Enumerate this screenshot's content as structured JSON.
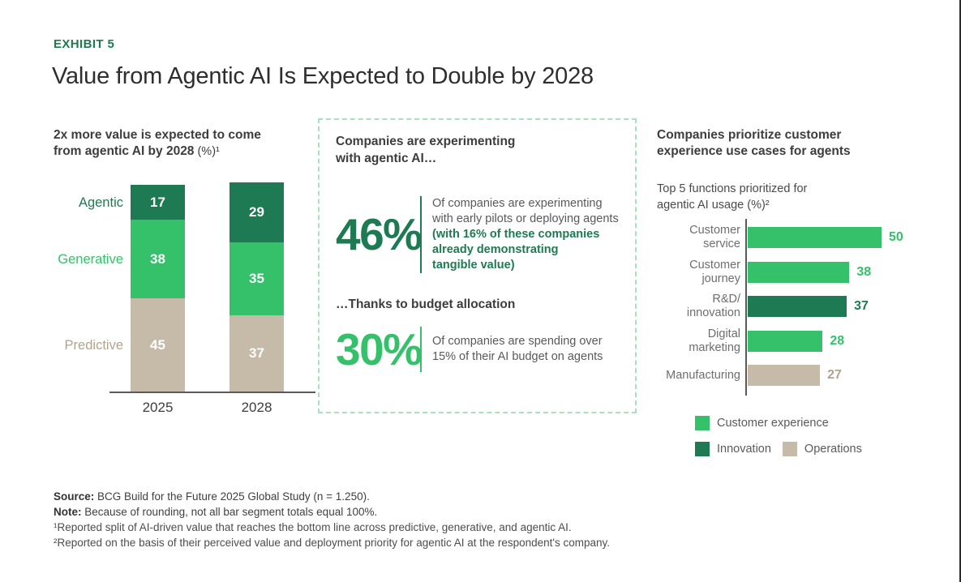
{
  "colors": {
    "dark_green": "#1E7A52",
    "bright_green": "#34C16A",
    "tan": "#C6BAA8",
    "tan_text": "#B2A38E",
    "dashed_border": "#A7E1C0",
    "axis_gray": "#5a5a5a"
  },
  "header": {
    "exhibit_label": "EXHIBIT 5",
    "title": "Value from Agentic AI Is Expected to Double by 2028"
  },
  "left_chart": {
    "title": "2x more value is expected to come\nfrom agentic AI by 2028",
    "title_suffix": " (%)¹"
  },
  "middle_panel": {
    "title": "Companies are experimenting\nwith agentic AI…",
    "stat1": {
      "value": "46%",
      "desc_gray": "Of companies are experimenting\nwith early pilots or deploying agents",
      "desc_green": "(with 16% of these companies\nalready demonstrating\ntangible value)"
    },
    "subtitle2": "…Thanks to budget allocation",
    "stat2": {
      "value": "30%",
      "desc_gray": "Of companies are spending over\n15% of their AI budget on agents"
    }
  },
  "right_chart": {
    "title": "Companies prioritize customer\nexperience use cases for agents",
    "subtitle": "Top 5 functions prioritized for\nagentic AI usage (%)²"
  },
  "chart_data": [
    {
      "type": "bar",
      "stacked": true,
      "title": "2x more value is expected to come from agentic AI by 2028 (%)",
      "categories": [
        "2025",
        "2028"
      ],
      "series": [
        {
          "name": "Agentic",
          "color_key": "dark_green",
          "values": [
            17,
            29
          ]
        },
        {
          "name": "Generative",
          "color_key": "bright_green",
          "values": [
            38,
            35
          ]
        },
        {
          "name": "Predictive",
          "color_key": "tan",
          "values": [
            45,
            37
          ]
        }
      ],
      "ylim": [
        0,
        101
      ],
      "value_labels": true,
      "legend_position": "left-of-bars"
    },
    {
      "type": "bar",
      "orientation": "horizontal",
      "title": "Top 5 functions prioritized for agentic AI usage (%)",
      "bars": [
        {
          "label": "Customer\nservice",
          "value": 50,
          "color_key": "bright_green",
          "group": "Customer experience"
        },
        {
          "label": "Customer\njourney",
          "value": 38,
          "color_key": "bright_green",
          "group": "Customer experience"
        },
        {
          "label": "R&D/\ninnovation",
          "value": 37,
          "color_key": "dark_green",
          "group": "Innovation"
        },
        {
          "label": "Digital\nmarketing",
          "value": 28,
          "color_key": "bright_green",
          "group": "Customer experience"
        },
        {
          "label": "Manufacturing",
          "value": 27,
          "color_key": "tan",
          "group": "Operations"
        }
      ],
      "xlim": [
        0,
        55
      ],
      "value_labels": true,
      "legend": [
        {
          "label": "Customer experience",
          "color_key": "bright_green"
        },
        {
          "label": "Innovation",
          "color_key": "dark_green"
        },
        {
          "label": "Operations",
          "color_key": "tan"
        }
      ]
    }
  ],
  "footer": {
    "lines": [
      {
        "label": "Source:",
        "text": " BCG Build for the Future 2025 Global Study (n = 1.250)."
      },
      {
        "label": "Note:",
        "text": " Because of rounding, not all bar segment totals equal 100%."
      },
      {
        "label": "",
        "text": "¹Reported split of AI-driven value that reaches the bottom line across predictive, generative, and agentic AI."
      },
      {
        "label": "",
        "text": "²Reported on the basis of their perceived value and deployment priority for agentic AI at the respondent's company."
      }
    ]
  }
}
